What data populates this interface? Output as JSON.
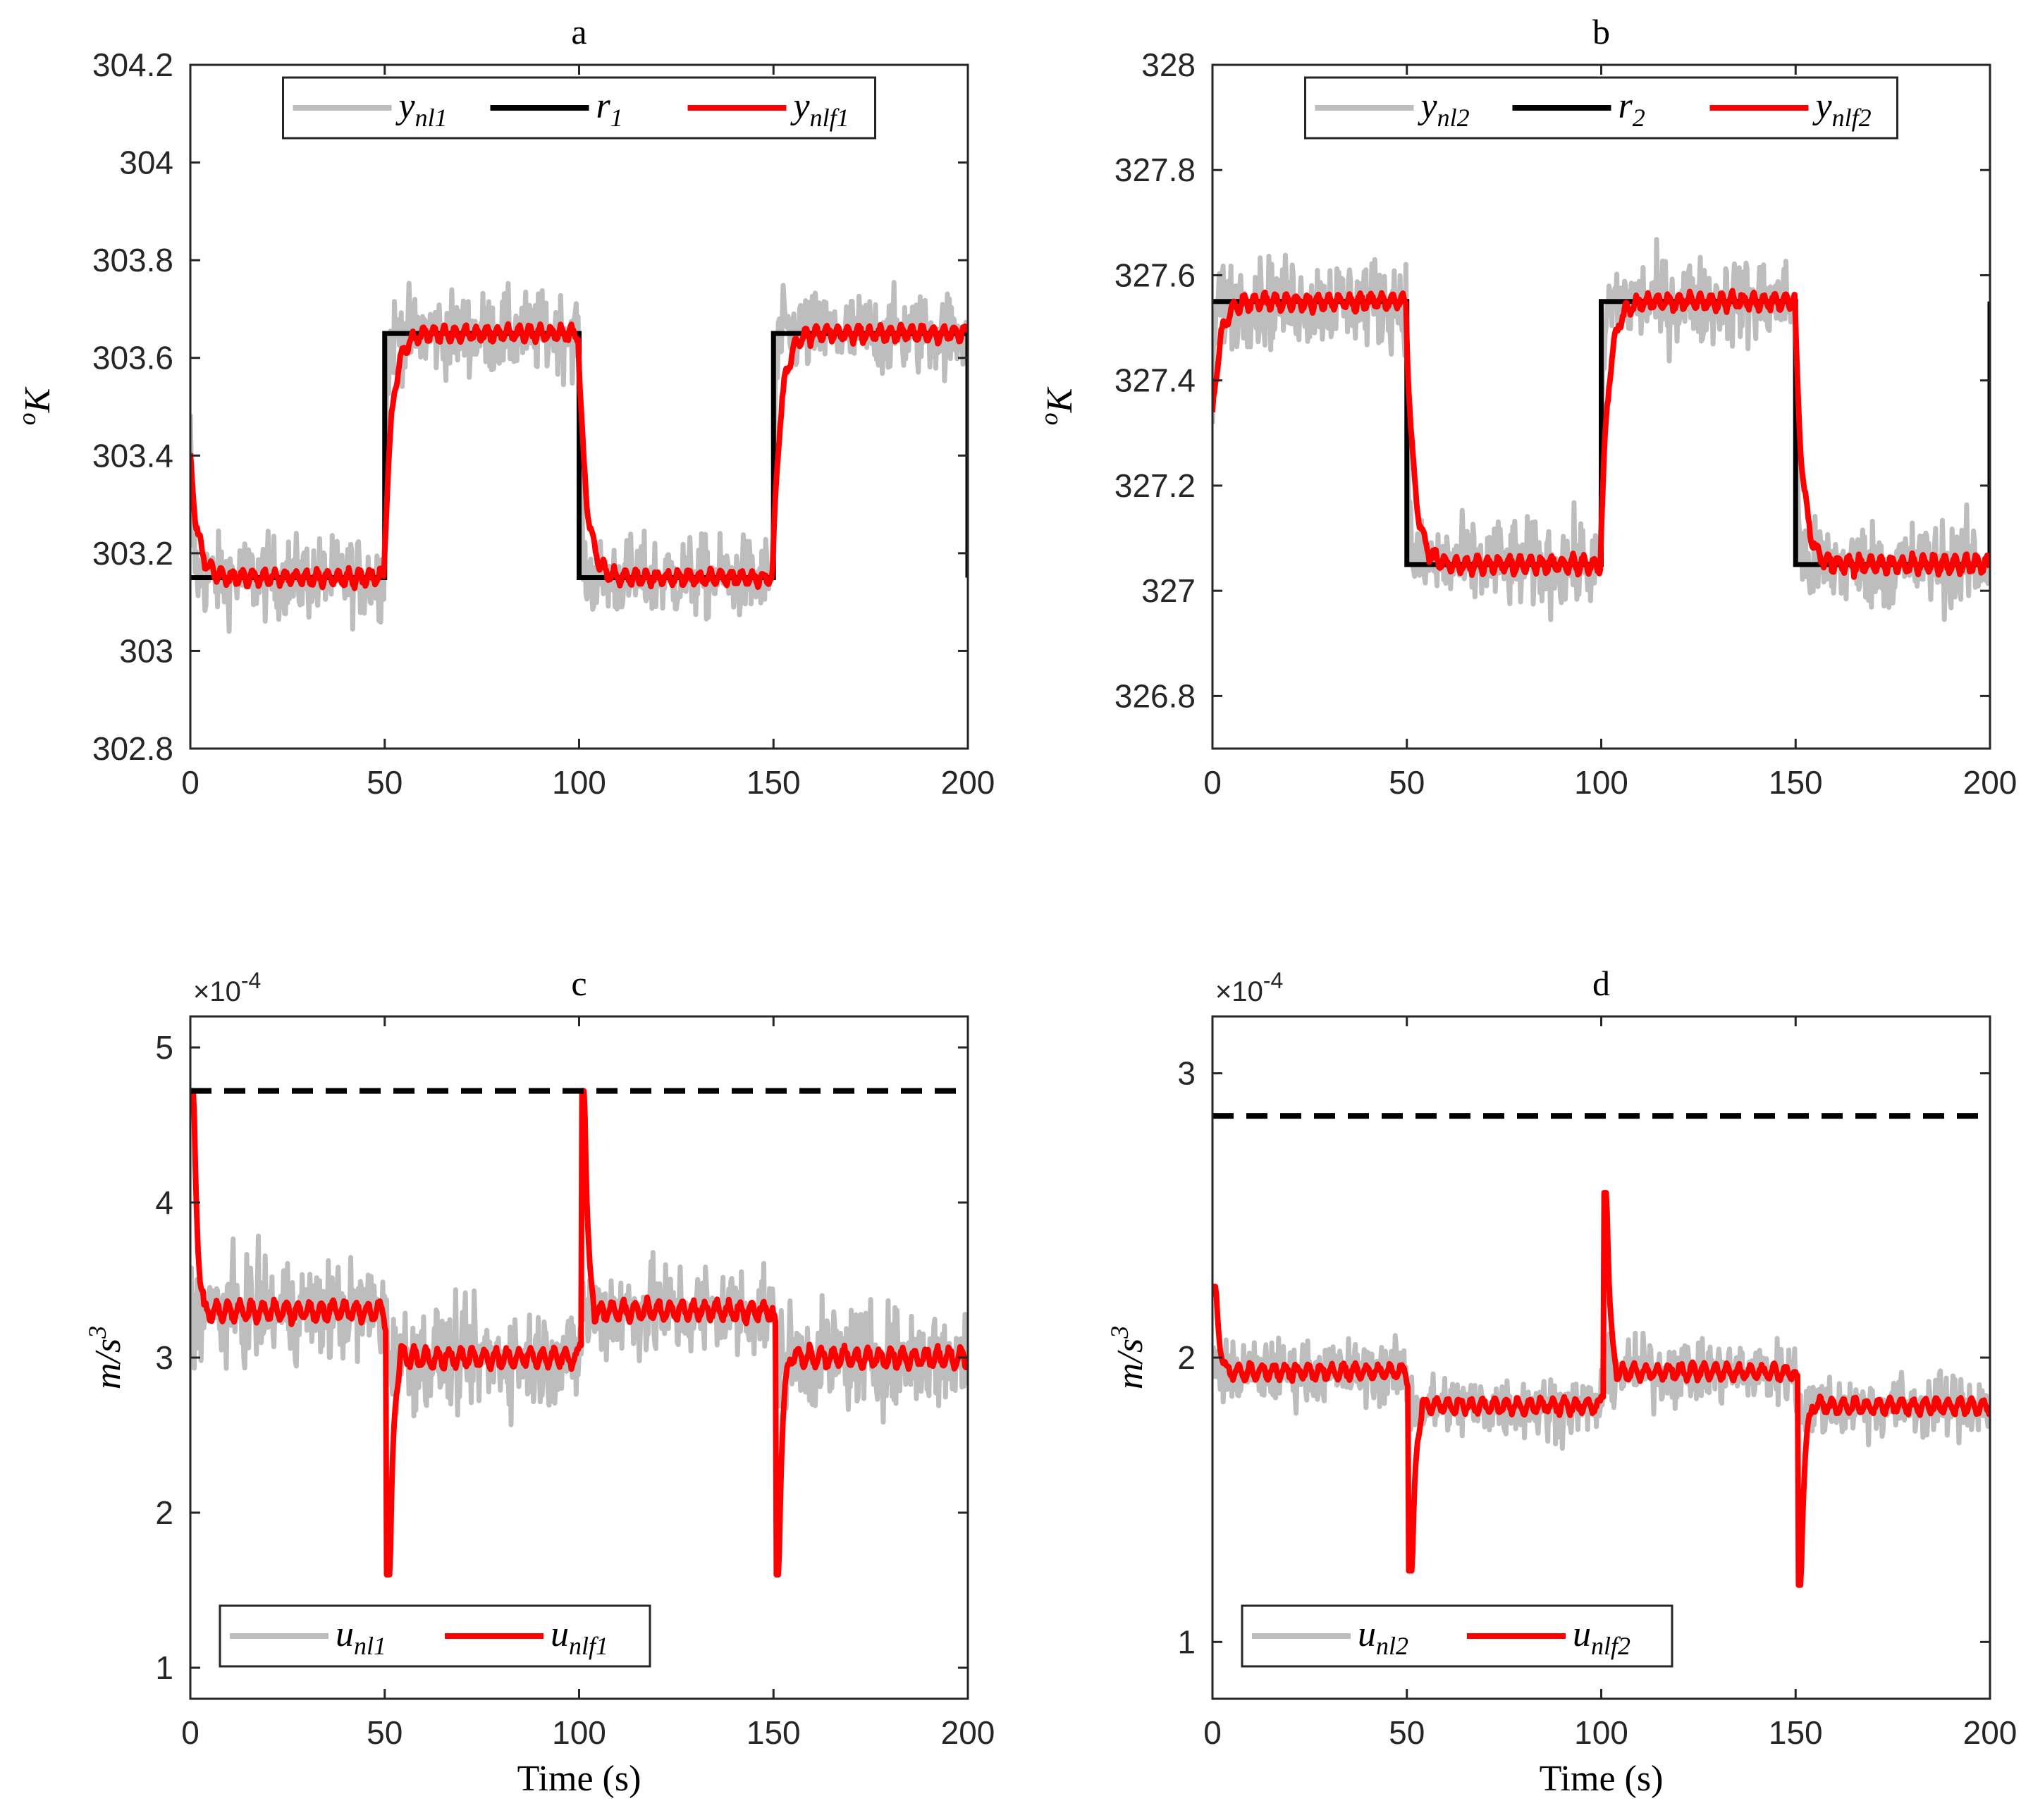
{
  "chart_data": [
    {
      "type": "line",
      "id": "a",
      "title": "a",
      "xlabel": "",
      "ylabel": "oK",
      "ylabel_main": "K",
      "ylabel_sup": "o",
      "xlim": [
        0,
        200
      ],
      "ylim": [
        302.8,
        304.2
      ],
      "xticks": [
        "0",
        "50",
        "100",
        "150",
        "200"
      ],
      "yticks": [
        "302.8",
        "303",
        "303.2",
        "303.4",
        "303.6",
        "303.8",
        "304",
        "304.2"
      ],
      "exponent_label": "",
      "legend_position": "top",
      "series": [
        {
          "name": "ynl1",
          "main": "y",
          "sub": "nl1",
          "color": "#bdbdbd",
          "kind": "noisy",
          "levels": [
            303.15,
            303.65,
            303.15,
            303.65
          ],
          "start": 303.6,
          "noise": 0.09
        },
        {
          "name": "r1",
          "main": "r",
          "sub": "1",
          "color": "#000000",
          "kind": "step",
          "levels": [
            303.15,
            303.65,
            303.15,
            303.65
          ],
          "end_drop": 303.15
        },
        {
          "name": "ynlf1",
          "main": "y",
          "sub": "nlf1",
          "color": "#ff0000",
          "kind": "filtered",
          "levels": [
            303.15,
            303.65,
            303.15,
            303.65
          ],
          "start": 303.43,
          "noise": 0.02
        }
      ]
    },
    {
      "type": "line",
      "id": "b",
      "title": "b",
      "xlabel": "",
      "ylabel": "oK",
      "ylabel_main": "K",
      "ylabel_sup": "o",
      "xlim": [
        0,
        200
      ],
      "ylim": [
        326.7,
        328
      ],
      "xticks": [
        "0",
        "50",
        "100",
        "150",
        "200"
      ],
      "yticks": [
        "326.8",
        "327",
        "327.2",
        "327.4",
        "327.6",
        "327.8",
        "328"
      ],
      "exponent_label": "",
      "legend_position": "top",
      "series": [
        {
          "name": "ynl2",
          "main": "y",
          "sub": "nl2",
          "color": "#bdbdbd",
          "kind": "noisy",
          "levels": [
            327.55,
            327.05,
            327.55,
            327.05
          ],
          "start": 327.3,
          "noise": 0.09
        },
        {
          "name": "r2",
          "main": "r",
          "sub": "2",
          "color": "#000000",
          "kind": "step",
          "levels": [
            327.55,
            327.05,
            327.55,
            327.05
          ],
          "end_rise": 327.55
        },
        {
          "name": "ynlf2",
          "main": "y",
          "sub": "nlf2",
          "color": "#ff0000",
          "kind": "filtered",
          "levels": [
            327.55,
            327.05,
            327.55,
            327.05
          ],
          "start": 327.3,
          "noise": 0.02
        }
      ]
    },
    {
      "type": "line",
      "id": "c",
      "title": "c",
      "xlabel": "Time (s)",
      "ylabel": "m/s3",
      "ylabel_main": "m/s",
      "ylabel_sup": "3",
      "xlim": [
        0,
        200
      ],
      "ylim": [
        0.8,
        5.2
      ],
      "xticks": [
        "0",
        "50",
        "100",
        "150",
        "200"
      ],
      "yticks": [
        "1",
        "2",
        "3",
        "4",
        "5"
      ],
      "exponent_label": "×10",
      "exponent_power": "-4",
      "legend_position": "bottom-left",
      "limit_line": 4.72,
      "series": [
        {
          "name": "unl1",
          "main": "u",
          "sub": "nl1",
          "color": "#bdbdbd",
          "kind": "noisy_input",
          "levels": [
            3.3,
            3.0,
            3.3,
            3.0
          ],
          "noise": 0.35
        },
        {
          "name": "unlf1",
          "main": "u",
          "sub": "nlf1",
          "color": "#ff0000",
          "kind": "filtered_input",
          "levels": [
            3.3,
            3.0,
            3.3,
            3.0
          ],
          "spikes": [
            4.72,
            1.6,
            4.72,
            1.6
          ],
          "noise": 0.07
        }
      ]
    },
    {
      "type": "line",
      "id": "d",
      "title": "d",
      "xlabel": "Time (s)",
      "ylabel": "m/s3",
      "ylabel_main": "m/s",
      "ylabel_sup": "3",
      "xlim": [
        0,
        200
      ],
      "ylim": [
        0.8,
        3.2
      ],
      "xticks": [
        "0",
        "50",
        "100",
        "150",
        "200"
      ],
      "yticks": [
        "1",
        "2",
        "3"
      ],
      "exponent_label": "×10",
      "exponent_power": "-4",
      "legend_position": "bottom-left",
      "limit_line": 2.85,
      "series": [
        {
          "name": "unl2",
          "main": "u",
          "sub": "nl2",
          "color": "#bdbdbd",
          "kind": "noisy_input",
          "levels": [
            1.95,
            1.83,
            1.95,
            1.83
          ],
          "noise": 0.12
        },
        {
          "name": "unlf2",
          "main": "u",
          "sub": "nlf2",
          "color": "#ff0000",
          "kind": "filtered_input",
          "levels": [
            1.95,
            1.83,
            1.95,
            1.83
          ],
          "spikes": [
            2.25,
            1.25,
            2.58,
            1.2
          ],
          "noise": 0.03
        }
      ]
    }
  ]
}
